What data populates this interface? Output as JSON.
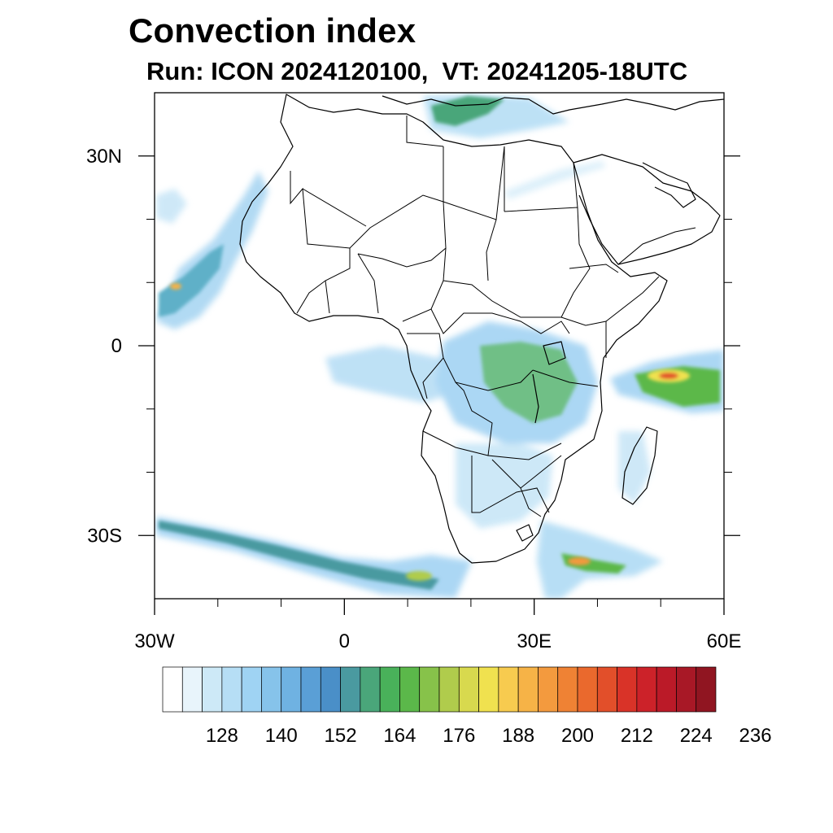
{
  "title": "Convection index",
  "subtitle": "Run: ICON 2024120100,  VT: 20241205-18UTC",
  "map": {
    "lon_range": [
      -30,
      60
    ],
    "lat_range": [
      -40,
      40
    ],
    "lon_ticks": [
      {
        "value": -30,
        "label": "30W"
      },
      {
        "value": 0,
        "label": "0"
      },
      {
        "value": 30,
        "label": "30E"
      },
      {
        "value": 60,
        "label": "60E"
      }
    ],
    "lat_ticks": [
      {
        "value": 30,
        "label": "30N"
      },
      {
        "value": 0,
        "label": "0"
      },
      {
        "value": -30,
        "label": "30S"
      }
    ],
    "minor_lon_ticks": [
      -20,
      -10,
      10,
      20,
      40,
      50
    ],
    "minor_lat_ticks": [
      20,
      10,
      -10,
      -20
    ]
  },
  "colorbar": {
    "labels": [
      "128",
      "140",
      "152",
      "164",
      "176",
      "188",
      "200",
      "212",
      "224",
      "236"
    ],
    "colors": [
      "#ffffff",
      "#e8f4fb",
      "#cde9f7",
      "#b6def5",
      "#9fd3f3",
      "#86c3ea",
      "#6fb2e2",
      "#5a9fd6",
      "#4a8fc8",
      "#4a9aa0",
      "#4aa67a",
      "#49b15a",
      "#5bb84a",
      "#87c24a",
      "#b0cc4c",
      "#d8d94e",
      "#f0e14f",
      "#f7cb4f",
      "#f6b347",
      "#f39a3e",
      "#ef8234",
      "#ea692d",
      "#e24f2a",
      "#d93328",
      "#cc2229",
      "#bb1a28",
      "#a81826",
      "#901521"
    ]
  }
}
